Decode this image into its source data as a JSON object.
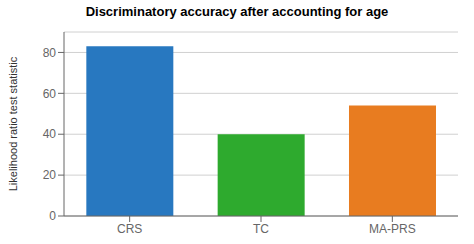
{
  "chart_data": {
    "type": "bar",
    "title": "Discriminatory accuracy after accounting for age",
    "categories": [
      "CRS",
      "TC",
      "MA-PRS"
    ],
    "values": [
      83,
      40,
      54
    ],
    "colors": [
      "#2878c0",
      "#2eaa2e",
      "#e87c20"
    ],
    "ylabel": "Likelihood ratio test statistic",
    "ylim": [
      0,
      90
    ],
    "yticks": [
      0,
      20,
      40,
      60,
      80
    ],
    "grid": true
  }
}
